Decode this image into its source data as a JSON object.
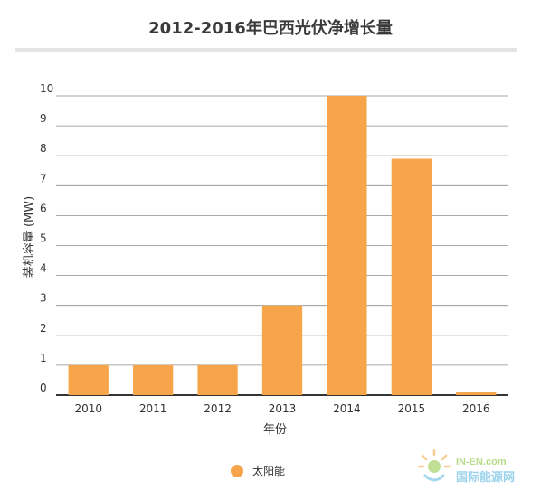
{
  "chart_data": {
    "type": "bar",
    "title": "2012-2016年巴西光伏净增长量",
    "xlabel": "年份",
    "ylabel": "装机容量 (MW)",
    "categories": [
      "2010",
      "2011",
      "2012",
      "2013",
      "2014",
      "2015",
      "2016"
    ],
    "series": [
      {
        "name": "太阳能",
        "values": [
          1,
          1,
          1,
          3,
          10,
          7.9,
          0.1
        ]
      }
    ],
    "ylim": [
      0,
      10
    ],
    "yticks": [
      "0",
      "1",
      "2",
      "3",
      "4",
      "5",
      "6",
      "7",
      "8",
      "9",
      "10"
    ],
    "grid": true,
    "legend_position": "bottom-center",
    "colors": {
      "bar": "#f7a54a",
      "grid": "#8c8c8c",
      "axis": "#333333"
    }
  },
  "watermark": {
    "brand": "IN-EN.com",
    "tagline": "国际能源网"
  }
}
